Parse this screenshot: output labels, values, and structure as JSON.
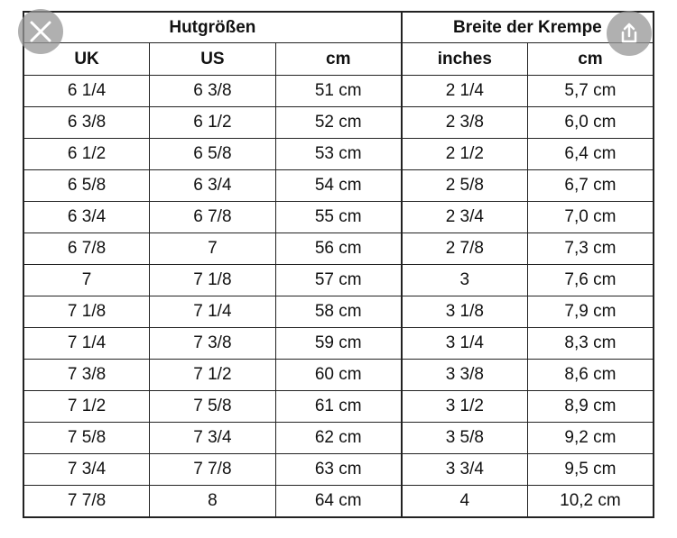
{
  "header": {
    "groups": [
      "Hutgrößen",
      "Breite der Krempe"
    ],
    "columns": [
      "UK",
      "US",
      "cm",
      "inches",
      "cm"
    ]
  },
  "table": {
    "rows": [
      [
        "6 1/4",
        "6 3/8",
        "51 cm",
        "2 1/4",
        "5,7 cm"
      ],
      [
        "6 3/8",
        "6 1/2",
        "52 cm",
        "2 3/8",
        "6,0 cm"
      ],
      [
        "6 1/2",
        "6 5/8",
        "53 cm",
        "2 1/2",
        "6,4 cm"
      ],
      [
        "6 5/8",
        "6 3/4",
        "54 cm",
        "2 5/8",
        "6,7 cm"
      ],
      [
        "6 3/4",
        "6 7/8",
        "55 cm",
        "2 3/4",
        "7,0 cm"
      ],
      [
        "6 7/8",
        "7",
        "56 cm",
        "2 7/8",
        "7,3 cm"
      ],
      [
        "7",
        "7 1/8",
        "57 cm",
        "3",
        "7,6 cm"
      ],
      [
        "7 1/8",
        "7 1/4",
        "58 cm",
        "3 1/8",
        "7,9 cm"
      ],
      [
        "7 1/4",
        "7 3/8",
        "59 cm",
        "3 1/4",
        "8,3 cm"
      ],
      [
        "7 3/8",
        "7 1/2",
        "60 cm",
        "3 3/8",
        "8,6 cm"
      ],
      [
        "7 1/2",
        "7 5/8",
        "61 cm",
        "3 1/2",
        "8,9 cm"
      ],
      [
        "7 5/8",
        "7 3/4",
        "62 cm",
        "3 5/8",
        "9,2 cm"
      ],
      [
        "7 3/4",
        "7 7/8",
        "63 cm",
        "3 3/4",
        "9,5 cm"
      ],
      [
        "7 7/8",
        "8",
        "64 cm",
        "4",
        "10,2 cm"
      ]
    ]
  }
}
